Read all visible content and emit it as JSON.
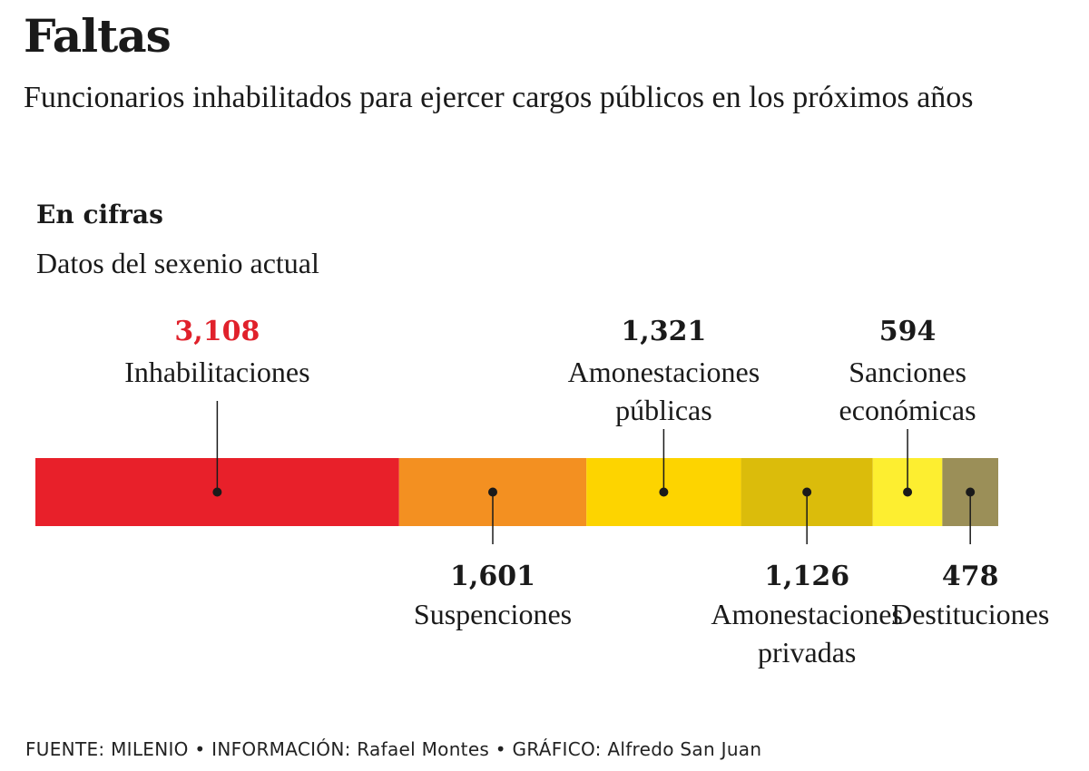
{
  "header": {
    "title": "Faltas",
    "subtitle": "Funcionarios inhabilitados para ejercer cargos públicos en los próximos años",
    "section_title": "En cifras",
    "section_subtitle": "Datos del sexenio actual"
  },
  "chart_data": {
    "type": "bar",
    "orientation": "horizontal-stacked",
    "categories": [
      "Inhabilitaciones",
      "Suspenciones",
      "Amonestaciones públicas",
      "Amonestaciones privadas",
      "Sanciones económicas",
      "Destituciones"
    ],
    "values": [
      3108,
      1601,
      1321,
      1126,
      594,
      478
    ],
    "value_labels": [
      "3,108",
      "1,601",
      "1,321",
      "1,126",
      "594",
      "478"
    ],
    "label_lines": [
      [
        "Inhabilitaciones"
      ],
      [
        "Suspenciones"
      ],
      [
        "Amonestaciones",
        "públicas"
      ],
      [
        "Amonestaciones",
        "privadas"
      ],
      [
        "Sanciones",
        "económicas"
      ],
      [
        "Destituciones"
      ]
    ],
    "label_position": [
      "above",
      "below",
      "above",
      "below",
      "above",
      "below"
    ],
    "colors": [
      "#e8202a",
      "#f39021",
      "#fdd400",
      "#dbbc0b",
      "#fdee30",
      "#9b8f58"
    ],
    "highlight_color": "#e0212b",
    "text_color": "#1a1a1a"
  },
  "footer": {
    "source": "FUENTE: MILENIO • INFORMACIÓN: Rafael Montes • GRÁFICO: Alfredo San Juan"
  }
}
